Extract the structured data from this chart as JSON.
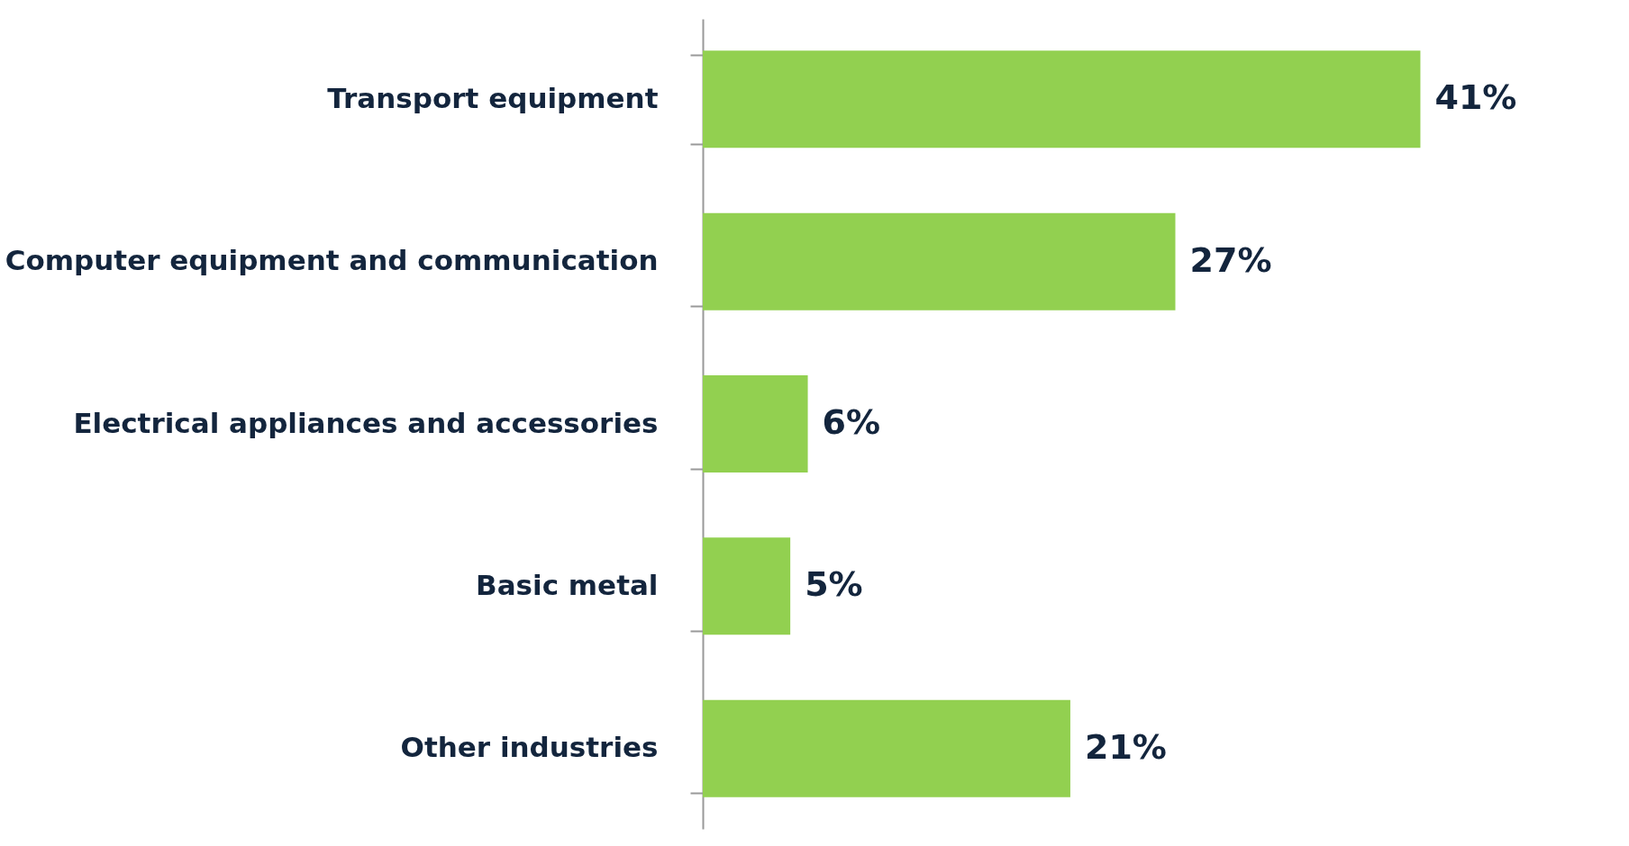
{
  "chart_data": {
    "type": "bar",
    "orientation": "horizontal",
    "categories": [
      "Transport equipment",
      "Computer equipment and communication",
      "Electrical appliances and accessories",
      "Basic metal",
      "Other industries"
    ],
    "values": [
      41,
      27,
      6,
      5,
      21
    ],
    "value_labels": [
      "41%",
      "27%",
      "6%",
      "5%",
      "21%"
    ],
    "color": "#92d050"
  }
}
